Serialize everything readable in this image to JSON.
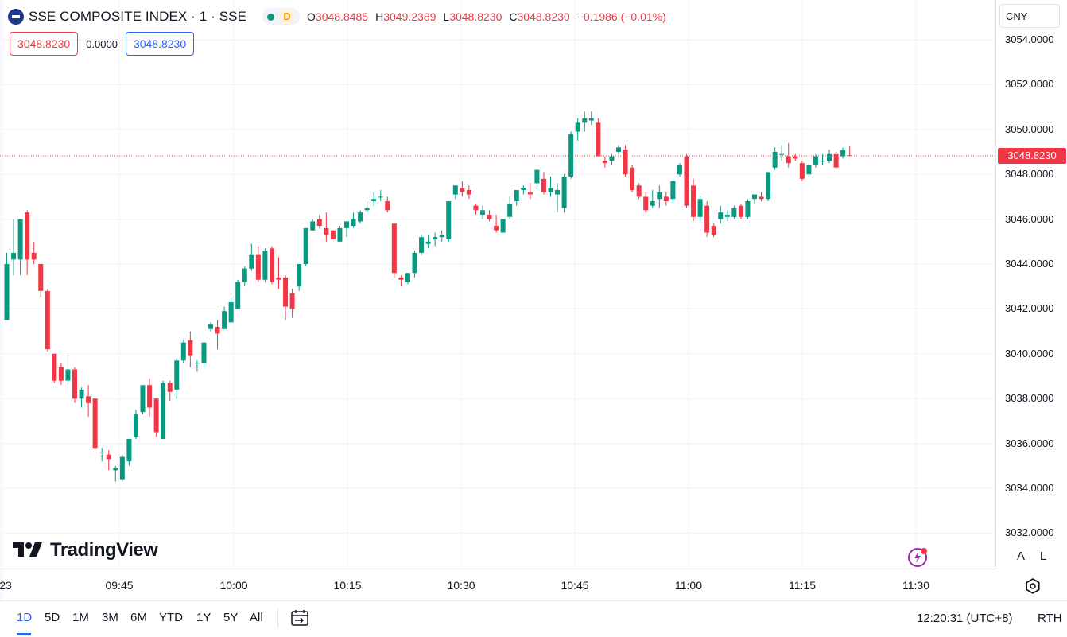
{
  "legend": {
    "symbol": "SSE COMPOSITE INDEX · 1 · SSE",
    "status_letter": "D",
    "open_label": "O",
    "open": "3048.8485",
    "high_label": "H",
    "high": "3049.2389",
    "low_label": "L",
    "low": "3048.8230",
    "close_label": "C",
    "close": "3048.8230",
    "change": "−0.1986 (−0.01%)",
    "colors": {
      "up": "#089981",
      "down": "#f23645",
      "accent": "#2962ff"
    }
  },
  "quote": {
    "bid": "3048.8230",
    "spread": "0.0000",
    "ask": "3048.8230"
  },
  "price_axis": {
    "currency": "CNY",
    "labels": [
      "3054.0000",
      "3052.0000",
      "3050.0000",
      "3048.0000",
      "3046.0000",
      "3044.0000",
      "3042.0000",
      "3040.0000",
      "3038.0000",
      "3036.0000",
      "3034.0000",
      "3032.0000"
    ],
    "last_price": "3048.8230"
  },
  "time_axis": {
    "labels": [
      "23",
      "09:45",
      "10:00",
      "10:15",
      "10:30",
      "10:45",
      "11:00",
      "11:15",
      "11:30"
    ]
  },
  "branding": {
    "name": "TradingView"
  },
  "scale_buttons": {
    "auto": "A",
    "log": "L"
  },
  "bottom": {
    "ranges": [
      "1D",
      "5D",
      "1M",
      "3M",
      "6M",
      "YTD",
      "1Y",
      "5Y",
      "All"
    ],
    "active_range": "1D",
    "clock": "12:20:31 (UTC+8)",
    "session": "RTH"
  },
  "icons": [
    "calendar-range-icon",
    "settings-icon",
    "flash-icon"
  ],
  "chart_data": {
    "type": "candlestick",
    "ylim": [
      3031.5,
      3054.5
    ],
    "last_price": 3048.823,
    "grid": true,
    "candles": [
      {
        "o": 3041.5,
        "h": 3044.5,
        "l": 3041.5,
        "c": 3044.0
      },
      {
        "o": 3044.2,
        "h": 3046.0,
        "l": 3043.5,
        "c": 3044.5
      },
      {
        "o": 3044.2,
        "h": 3046.0,
        "l": 3043.5,
        "c": 3046.0
      },
      {
        "o": 3046.3,
        "h": 3046.4,
        "l": 3043.5,
        "c": 3044.2
      },
      {
        "o": 3044.5,
        "h": 3045.0,
        "l": 3044.0,
        "c": 3044.2
      },
      {
        "o": 3044.0,
        "h": 3044.0,
        "l": 3042.5,
        "c": 3042.8
      },
      {
        "o": 3042.8,
        "h": 3042.9,
        "l": 3040.1,
        "c": 3040.2
      },
      {
        "o": 3040.0,
        "h": 3040.0,
        "l": 3038.7,
        "c": 3038.8
      },
      {
        "o": 3039.4,
        "h": 3039.6,
        "l": 3038.6,
        "c": 3038.8
      },
      {
        "o": 3038.8,
        "h": 3039.9,
        "l": 3038.6,
        "c": 3039.3
      },
      {
        "o": 3039.3,
        "h": 3039.4,
        "l": 3037.8,
        "c": 3038.0
      },
      {
        "o": 3038.0,
        "h": 3038.5,
        "l": 3037.6,
        "c": 3038.4
      },
      {
        "o": 3038.1,
        "h": 3038.6,
        "l": 3037.2,
        "c": 3037.8
      },
      {
        "o": 3038.0,
        "h": 3038.0,
        "l": 3035.7,
        "c": 3035.8
      },
      {
        "o": 3035.6,
        "h": 3035.8,
        "l": 3035.2,
        "c": 3035.6
      },
      {
        "o": 3035.5,
        "h": 3035.7,
        "l": 3034.8,
        "c": 3035.3
      },
      {
        "o": 3034.8,
        "h": 3035.0,
        "l": 3034.3,
        "c": 3034.9
      },
      {
        "o": 3034.4,
        "h": 3035.5,
        "l": 3034.3,
        "c": 3035.4
      },
      {
        "o": 3035.2,
        "h": 3036.2,
        "l": 3035.0,
        "c": 3036.2
      },
      {
        "o": 3036.3,
        "h": 3037.5,
        "l": 3036.2,
        "c": 3037.3
      },
      {
        "o": 3037.4,
        "h": 3038.6,
        "l": 3037.3,
        "c": 3038.6
      },
      {
        "o": 3038.6,
        "h": 3038.9,
        "l": 3037.2,
        "c": 3037.6
      },
      {
        "o": 3038.0,
        "h": 3038.0,
        "l": 3036.3,
        "c": 3036.5
      },
      {
        "o": 3036.2,
        "h": 3038.8,
        "l": 3036.2,
        "c": 3038.7
      },
      {
        "o": 3038.7,
        "h": 3038.8,
        "l": 3037.9,
        "c": 3038.3
      },
      {
        "o": 3038.4,
        "h": 3039.8,
        "l": 3038.0,
        "c": 3039.7
      },
      {
        "o": 3039.7,
        "h": 3040.6,
        "l": 3039.6,
        "c": 3040.5
      },
      {
        "o": 3040.6,
        "h": 3041.0,
        "l": 3039.4,
        "c": 3039.9
      },
      {
        "o": 3039.6,
        "h": 3039.7,
        "l": 3039.2,
        "c": 3039.6
      },
      {
        "o": 3039.6,
        "h": 3040.5,
        "l": 3039.4,
        "c": 3040.5
      },
      {
        "o": 3041.1,
        "h": 3041.4,
        "l": 3041.0,
        "c": 3041.3
      },
      {
        "o": 3041.2,
        "h": 3041.5,
        "l": 3040.2,
        "c": 3040.9
      },
      {
        "o": 3041.1,
        "h": 3042.1,
        "l": 3041.1,
        "c": 3041.9
      },
      {
        "o": 3041.4,
        "h": 3042.5,
        "l": 3041.4,
        "c": 3042.3
      },
      {
        "o": 3042.0,
        "h": 3043.3,
        "l": 3042.0,
        "c": 3043.2
      },
      {
        "o": 3043.2,
        "h": 3043.9,
        "l": 3043.0,
        "c": 3043.8
      },
      {
        "o": 3043.8,
        "h": 3044.9,
        "l": 3043.7,
        "c": 3044.4
      },
      {
        "o": 3044.4,
        "h": 3044.8,
        "l": 3043.2,
        "c": 3043.3
      },
      {
        "o": 3043.3,
        "h": 3044.7,
        "l": 3043.2,
        "c": 3044.6
      },
      {
        "o": 3044.7,
        "h": 3044.8,
        "l": 3043.1,
        "c": 3043.2
      },
      {
        "o": 3043.4,
        "h": 3044.3,
        "l": 3042.9,
        "c": 3043.3
      },
      {
        "o": 3043.4,
        "h": 3043.5,
        "l": 3041.5,
        "c": 3042.1
      },
      {
        "o": 3042.7,
        "h": 3042.9,
        "l": 3041.6,
        "c": 3042.0
      },
      {
        "o": 3043.0,
        "h": 3044.0,
        "l": 3042.8,
        "c": 3044.0
      },
      {
        "o": 3044.0,
        "h": 3045.6,
        "l": 3043.9,
        "c": 3045.6
      },
      {
        "o": 3045.5,
        "h": 3046.0,
        "l": 3045.5,
        "c": 3045.9
      },
      {
        "o": 3046.0,
        "h": 3046.2,
        "l": 3045.6,
        "c": 3045.7
      },
      {
        "o": 3045.6,
        "h": 3046.3,
        "l": 3045.0,
        "c": 3045.3
      },
      {
        "o": 3045.5,
        "h": 3045.5,
        "l": 3045.1,
        "c": 3045.1
      },
      {
        "o": 3045.0,
        "h": 3045.7,
        "l": 3045.0,
        "c": 3045.6
      },
      {
        "o": 3045.6,
        "h": 3045.9,
        "l": 3045.2,
        "c": 3045.9
      },
      {
        "o": 3045.7,
        "h": 3046.3,
        "l": 3045.6,
        "c": 3046.0
      },
      {
        "o": 3045.9,
        "h": 3046.4,
        "l": 3045.8,
        "c": 3046.3
      },
      {
        "o": 3046.4,
        "h": 3046.8,
        "l": 3046.2,
        "c": 3046.5
      },
      {
        "o": 3046.8,
        "h": 3047.2,
        "l": 3046.6,
        "c": 3046.9
      },
      {
        "o": 3047.0,
        "h": 3047.3,
        "l": 3046.8,
        "c": 3047.0
      },
      {
        "o": 3046.8,
        "h": 3047.0,
        "l": 3046.3,
        "c": 3046.4
      },
      {
        "o": 3045.8,
        "h": 3045.8,
        "l": 3043.4,
        "c": 3043.6
      },
      {
        "o": 3043.4,
        "h": 3043.5,
        "l": 3043.0,
        "c": 3043.3
      },
      {
        "o": 3043.2,
        "h": 3043.6,
        "l": 3043.1,
        "c": 3043.6
      },
      {
        "o": 3043.6,
        "h": 3044.6,
        "l": 3043.4,
        "c": 3044.5
      },
      {
        "o": 3044.5,
        "h": 3045.3,
        "l": 3044.4,
        "c": 3045.2
      },
      {
        "o": 3044.9,
        "h": 3045.3,
        "l": 3044.7,
        "c": 3045.0
      },
      {
        "o": 3045.1,
        "h": 3045.4,
        "l": 3044.8,
        "c": 3045.2
      },
      {
        "o": 3045.2,
        "h": 3045.5,
        "l": 3045.0,
        "c": 3045.3
      },
      {
        "o": 3045.1,
        "h": 3046.8,
        "l": 3045.0,
        "c": 3046.8
      },
      {
        "o": 3047.1,
        "h": 3047.5,
        "l": 3046.9,
        "c": 3047.5
      },
      {
        "o": 3047.4,
        "h": 3047.7,
        "l": 3047.0,
        "c": 3047.2
      },
      {
        "o": 3047.3,
        "h": 3047.5,
        "l": 3046.9,
        "c": 3047.1
      },
      {
        "o": 3046.6,
        "h": 3046.7,
        "l": 3046.2,
        "c": 3046.4
      },
      {
        "o": 3046.2,
        "h": 3046.6,
        "l": 3046.0,
        "c": 3046.4
      },
      {
        "o": 3046.2,
        "h": 3046.4,
        "l": 3045.9,
        "c": 3046.0
      },
      {
        "o": 3045.7,
        "h": 3046.2,
        "l": 3045.4,
        "c": 3045.5
      },
      {
        "o": 3045.4,
        "h": 3046.0,
        "l": 3045.4,
        "c": 3046.0
      },
      {
        "o": 3046.1,
        "h": 3047.0,
        "l": 3046.0,
        "c": 3046.7
      },
      {
        "o": 3046.8,
        "h": 3047.3,
        "l": 3046.6,
        "c": 3047.3
      },
      {
        "o": 3047.3,
        "h": 3047.5,
        "l": 3047.1,
        "c": 3047.4
      },
      {
        "o": 3047.2,
        "h": 3047.6,
        "l": 3046.9,
        "c": 3047.1
      },
      {
        "o": 3047.6,
        "h": 3048.2,
        "l": 3047.3,
        "c": 3048.2
      },
      {
        "o": 3047.8,
        "h": 3048.1,
        "l": 3047.1,
        "c": 3047.2
      },
      {
        "o": 3047.2,
        "h": 3047.9,
        "l": 3047.0,
        "c": 3047.4
      },
      {
        "o": 3047.1,
        "h": 3047.6,
        "l": 3046.3,
        "c": 3047.3
      },
      {
        "o": 3046.5,
        "h": 3048.0,
        "l": 3046.3,
        "c": 3047.9
      },
      {
        "o": 3047.9,
        "h": 3049.9,
        "l": 3047.8,
        "c": 3049.8
      },
      {
        "o": 3049.9,
        "h": 3050.5,
        "l": 3049.5,
        "c": 3050.3
      },
      {
        "o": 3050.3,
        "h": 3050.8,
        "l": 3049.9,
        "c": 3050.5
      },
      {
        "o": 3050.4,
        "h": 3050.8,
        "l": 3050.2,
        "c": 3050.5
      },
      {
        "o": 3050.3,
        "h": 3050.5,
        "l": 3048.9,
        "c": 3048.8
      },
      {
        "o": 3048.6,
        "h": 3048.8,
        "l": 3048.3,
        "c": 3048.5
      },
      {
        "o": 3048.6,
        "h": 3048.9,
        "l": 3048.4,
        "c": 3048.8
      },
      {
        "o": 3049.0,
        "h": 3049.3,
        "l": 3048.9,
        "c": 3049.2
      },
      {
        "o": 3049.1,
        "h": 3049.3,
        "l": 3047.9,
        "c": 3048.0
      },
      {
        "o": 3048.3,
        "h": 3048.4,
        "l": 3047.2,
        "c": 3047.3
      },
      {
        "o": 3047.5,
        "h": 3047.6,
        "l": 3046.9,
        "c": 3047.0
      },
      {
        "o": 3047.0,
        "h": 3047.2,
        "l": 3046.3,
        "c": 3046.4
      },
      {
        "o": 3046.6,
        "h": 3047.3,
        "l": 3046.5,
        "c": 3046.8
      },
      {
        "o": 3046.9,
        "h": 3047.5,
        "l": 3046.5,
        "c": 3047.2
      },
      {
        "o": 3047.0,
        "h": 3047.2,
        "l": 3046.6,
        "c": 3046.8
      },
      {
        "o": 3046.9,
        "h": 3047.7,
        "l": 3046.7,
        "c": 3047.7
      },
      {
        "o": 3048.0,
        "h": 3048.5,
        "l": 3047.9,
        "c": 3048.4
      },
      {
        "o": 3048.8,
        "h": 3048.9,
        "l": 3046.5,
        "c": 3046.6
      },
      {
        "o": 3047.5,
        "h": 3047.8,
        "l": 3045.9,
        "c": 3046.1
      },
      {
        "o": 3046.1,
        "h": 3047.0,
        "l": 3045.9,
        "c": 3046.9
      },
      {
        "o": 3046.6,
        "h": 3046.8,
        "l": 3045.2,
        "c": 3045.4
      },
      {
        "o": 3045.7,
        "h": 3045.8,
        "l": 3045.2,
        "c": 3045.3
      },
      {
        "o": 3046.0,
        "h": 3046.6,
        "l": 3045.8,
        "c": 3046.3
      },
      {
        "o": 3046.1,
        "h": 3046.4,
        "l": 3045.9,
        "c": 3046.2
      },
      {
        "o": 3046.1,
        "h": 3046.6,
        "l": 3046.0,
        "c": 3046.5
      },
      {
        "o": 3046.6,
        "h": 3046.7,
        "l": 3046.0,
        "c": 3046.1
      },
      {
        "o": 3046.1,
        "h": 3046.9,
        "l": 3046.0,
        "c": 3046.8
      },
      {
        "o": 3046.9,
        "h": 3047.1,
        "l": 3046.7,
        "c": 3047.1
      },
      {
        "o": 3047.0,
        "h": 3047.2,
        "l": 3046.8,
        "c": 3046.9
      },
      {
        "o": 3046.9,
        "h": 3048.1,
        "l": 3046.8,
        "c": 3048.1
      },
      {
        "o": 3048.3,
        "h": 3049.2,
        "l": 3048.2,
        "c": 3049.0
      },
      {
        "o": 3048.9,
        "h": 3049.3,
        "l": 3048.6,
        "c": 3048.9
      },
      {
        "o": 3048.8,
        "h": 3049.4,
        "l": 3048.3,
        "c": 3048.5
      },
      {
        "o": 3048.8,
        "h": 3048.9,
        "l": 3048.6,
        "c": 3048.7
      },
      {
        "o": 3048.5,
        "h": 3048.6,
        "l": 3047.7,
        "c": 3047.8
      },
      {
        "o": 3048.0,
        "h": 3048.5,
        "l": 3047.9,
        "c": 3048.4
      },
      {
        "o": 3048.4,
        "h": 3048.9,
        "l": 3048.3,
        "c": 3048.8
      },
      {
        "o": 3048.6,
        "h": 3048.9,
        "l": 3048.4,
        "c": 3048.6
      },
      {
        "o": 3048.6,
        "h": 3049.1,
        "l": 3048.5,
        "c": 3048.9
      },
      {
        "o": 3048.9,
        "h": 3049.0,
        "l": 3048.2,
        "c": 3048.3
      },
      {
        "o": 3048.8,
        "h": 3049.2,
        "l": 3048.7,
        "c": 3049.1
      },
      {
        "o": 3048.85,
        "h": 3049.24,
        "l": 3048.82,
        "c": 3048.82
      }
    ]
  }
}
